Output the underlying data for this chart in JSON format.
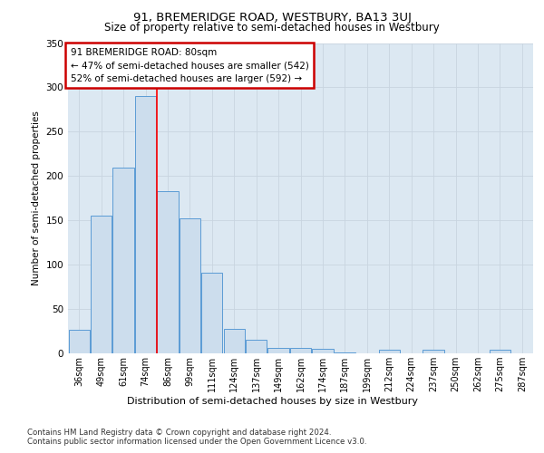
{
  "title1": "91, BREMERIDGE ROAD, WESTBURY, BA13 3UJ",
  "title2": "Size of property relative to semi-detached houses in Westbury",
  "xlabel": "Distribution of semi-detached houses by size in Westbury",
  "ylabel": "Number of semi-detached properties",
  "categories": [
    "36sqm",
    "49sqm",
    "61sqm",
    "74sqm",
    "86sqm",
    "99sqm",
    "111sqm",
    "124sqm",
    "137sqm",
    "149sqm",
    "162sqm",
    "174sqm",
    "187sqm",
    "199sqm",
    "212sqm",
    "224sqm",
    "237sqm",
    "250sqm",
    "262sqm",
    "275sqm",
    "287sqm"
  ],
  "values": [
    27,
    155,
    210,
    290,
    183,
    152,
    91,
    28,
    15,
    6,
    6,
    5,
    1,
    0,
    4,
    0,
    4,
    0,
    0,
    4,
    0
  ],
  "bar_color": "#ccdded",
  "bar_edge_color": "#5b9bd5",
  "red_line_x": 3.5,
  "annotation_text": "91 BREMERIDGE ROAD: 80sqm\n← 47% of semi-detached houses are smaller (542)\n52% of semi-detached houses are larger (592) →",
  "annotation_box_color": "#ffffff",
  "annotation_border_color": "#cc0000",
  "footer1": "Contains HM Land Registry data © Crown copyright and database right 2024.",
  "footer2": "Contains public sector information licensed under the Open Government Licence v3.0.",
  "ylim": [
    0,
    350
  ],
  "yticks": [
    0,
    50,
    100,
    150,
    200,
    250,
    300,
    350
  ],
  "grid_color": "#c8d4e0",
  "background_color": "#dce8f2",
  "fig_background": "#ffffff"
}
